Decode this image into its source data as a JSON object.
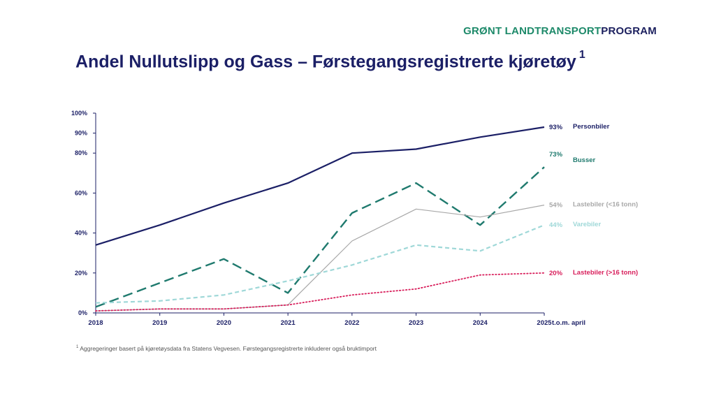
{
  "brand": {
    "part1": "GRØNT LANDTRANSPORT",
    "part2": "PROGRAM"
  },
  "title": {
    "text": "Andel Nullutslipp og Gass – Førstegangsregistrerte kjøretøy",
    "superscript": "1"
  },
  "footnote": {
    "superscript": "1",
    "text": "Aggregeringer basert på kjøretøysdata fra Statens Vegvesen. Førstegangsregistrerte inkluderer også bruktimport"
  },
  "colors": {
    "personbiler": "#1b1f66",
    "busser": "#1f7a6e",
    "lastebiler_small": "#a8a8a8",
    "varebiler": "#9fd8d8",
    "lastebiler_large": "#d81e5b",
    "axis": "#1b1f66"
  },
  "chart_data": {
    "type": "line",
    "x": [
      "2018",
      "2019",
      "2020",
      "2021",
      "2022",
      "2023",
      "2024",
      "2025"
    ],
    "x_suffix": "t.o.m. april",
    "ylim": [
      0,
      100
    ],
    "y_ticks": [
      "0%",
      "20%",
      "40%",
      "60%",
      "80%",
      "90%",
      "100%"
    ],
    "y_tick_values": [
      0,
      20,
      40,
      60,
      80,
      90,
      100
    ],
    "grid": false,
    "series": [
      {
        "name": "Personbiler",
        "key": "personbiler",
        "style": "solid",
        "values": [
          34,
          44,
          55,
          65,
          80,
          82,
          88,
          93
        ],
        "end_label": "93%"
      },
      {
        "name": "Busser",
        "key": "busser",
        "style": "dashed",
        "values": [
          3,
          15,
          27,
          10,
          50,
          65,
          44,
          73
        ],
        "end_label": "73%"
      },
      {
        "name": "Lastebiler (<16 tonn)",
        "key": "lastebiler_small",
        "style": "thin",
        "values": [
          1,
          2,
          2,
          4,
          36,
          52,
          48,
          54
        ],
        "end_label": "54%"
      },
      {
        "name": "Varebiler",
        "key": "varebiler",
        "style": "shortdash",
        "values": [
          5,
          6,
          9,
          16,
          24,
          34,
          31,
          44
        ],
        "end_label": "44%"
      },
      {
        "name": "Lastebiler (>16 tonn)",
        "key": "lastebiler_large",
        "style": "dotted",
        "values": [
          1,
          2,
          2,
          4,
          9,
          12,
          19,
          20
        ],
        "end_label": "20%"
      }
    ]
  }
}
